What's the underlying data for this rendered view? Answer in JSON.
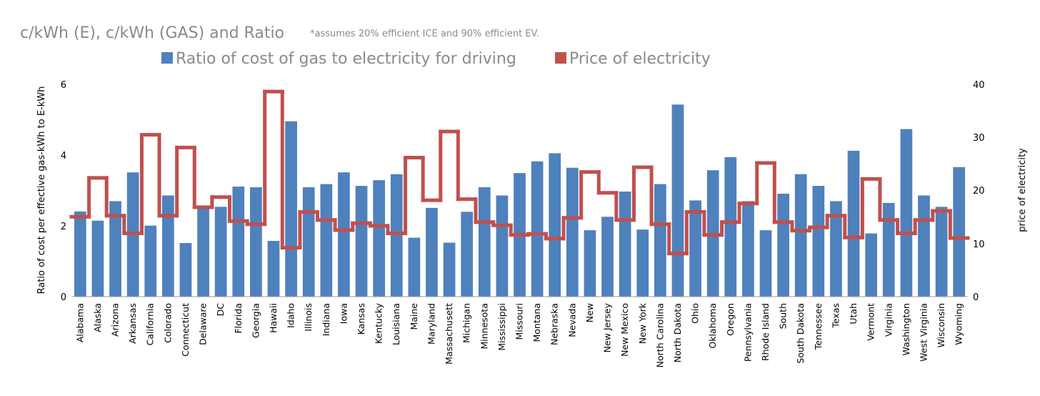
{
  "chart_data": {
    "type": "bar+line",
    "title": "c/kWh (E), c/kWh (GAS) and Ratio",
    "subtitle": "*assumes 20% efficient ICE and 90% efficient EV.",
    "legend": [
      "Ratio of cost of gas to electricity for driving",
      "Price of electricity"
    ],
    "legend_position": "top",
    "ylabel": "Ratio of cost per effective gas-kWh to E-kWh",
    "y2label": "price of electricity",
    "ylim": [
      0,
      6
    ],
    "y2lim": [
      0,
      40
    ],
    "yticks": [
      "0",
      "2",
      "4",
      "6"
    ],
    "y2ticks": [
      "0",
      "10",
      "20",
      "30",
      "40"
    ],
    "categories": [
      "Alabama",
      "Alaska",
      "Arizona",
      "Arkansas",
      "California",
      "Colorado",
      "Connecticut",
      "Delaware",
      "DC",
      "Florida",
      "Georgia",
      "Hawaii",
      "Idaho",
      "Illinois",
      "Indiana",
      "Iowa",
      "Kansas",
      "Kentucky",
      "Louisiana",
      "Maine",
      "Maryland",
      "Massachusett",
      "Michigan",
      "Minnesota",
      "Mississippi",
      "Missouri",
      "Montana",
      "Nebraska",
      "Nevada",
      "New",
      "New Jersey",
      "New Mexico",
      "New York",
      "North Carolina",
      "North Dakota",
      "Ohio",
      "Oklahoma",
      "Oregon",
      "Pennsylvania",
      "Rhode Island",
      "South",
      "South Dakota",
      "Tennessee",
      "Texas",
      "Utah",
      "Vermont",
      "Virginia",
      "Washington",
      "West Virginia",
      "Wisconsin",
      "Wyoming"
    ],
    "series": [
      {
        "name": "Ratio of cost of gas to electricity for driving",
        "type": "bar",
        "color": "#4f81bd",
        "values": [
          2.4,
          2.14,
          2.69,
          3.5,
          2.0,
          2.85,
          1.51,
          2.5,
          2.53,
          3.1,
          3.08,
          1.57,
          4.94,
          3.08,
          3.17,
          3.5,
          3.12,
          3.28,
          3.45,
          1.66,
          2.5,
          1.52,
          2.39,
          3.08,
          2.85,
          3.48,
          3.81,
          4.04,
          3.63,
          1.87,
          2.25,
          2.96,
          1.89,
          3.17,
          5.41,
          2.71,
          3.56,
          3.93,
          2.69,
          1.87,
          2.9,
          3.45,
          3.12,
          2.69,
          4.11,
          1.78,
          2.64,
          4.72,
          2.85,
          2.53,
          3.65
        ]
      },
      {
        "name": "Price of electricity",
        "type": "step-line",
        "color": "#c0504d",
        "values": [
          15.0,
          22.3,
          15.2,
          11.9,
          30.4,
          15.2,
          28.0,
          16.8,
          18.7,
          14.2,
          13.6,
          38.5,
          9.2,
          15.9,
          14.4,
          12.5,
          13.8,
          13.3,
          11.9,
          26.1,
          18.1,
          31.0,
          18.3,
          14.0,
          13.4,
          11.6,
          11.8,
          10.9,
          14.8,
          23.4,
          19.5,
          14.4,
          24.3,
          13.6,
          8.1,
          15.9,
          11.6,
          14.0,
          17.5,
          25.1,
          14.0,
          12.4,
          13.0,
          15.2,
          11.1,
          22.1,
          14.4,
          11.9,
          14.4,
          16.1,
          11.0
        ]
      }
    ]
  }
}
